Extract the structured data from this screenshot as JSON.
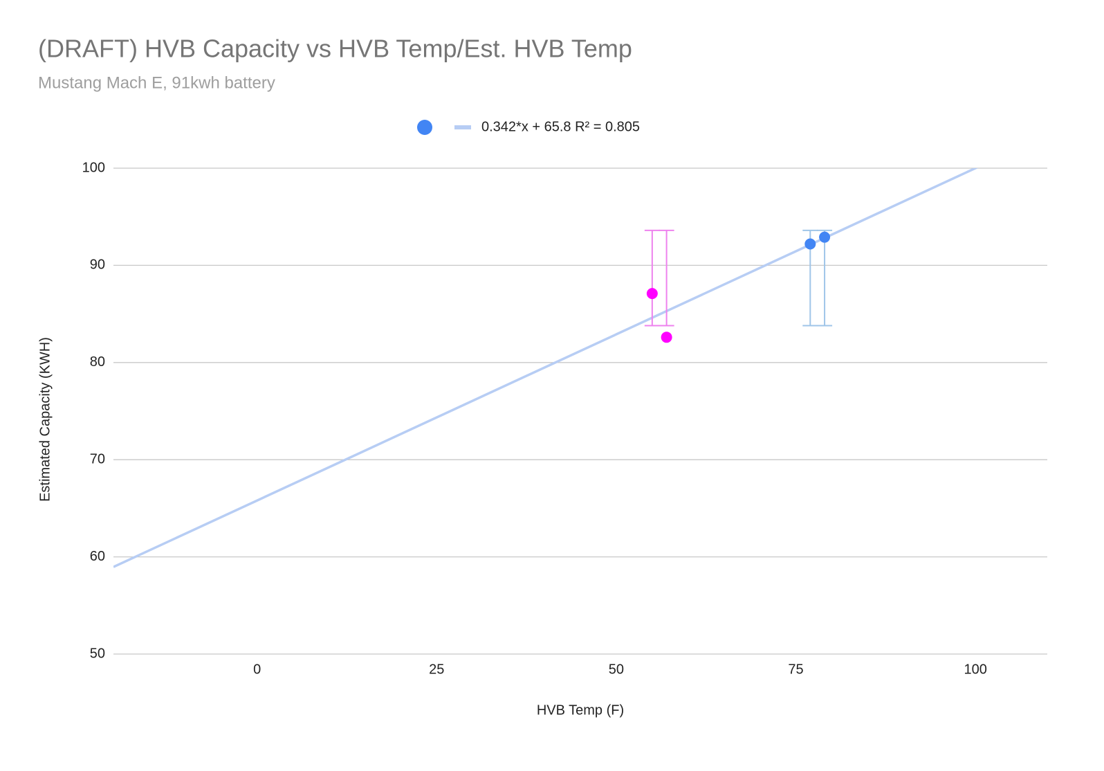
{
  "chart_data": {
    "type": "scatter",
    "title": "(DRAFT) HVB Capacity vs HVB Temp/Est. HVB Temp",
    "subtitle": "Mustang Mach E, 91kwh battery",
    "x_label": "HVB Temp (F)",
    "y_label": "Estimated Capacity (KWH)",
    "xlim": [
      -20,
      110
    ],
    "xticks": [
      0,
      25,
      50,
      75,
      100
    ],
    "ylim": [
      50,
      100
    ],
    "yticks": [
      50,
      60,
      70,
      80,
      90,
      100
    ],
    "grid": true,
    "series": [
      {
        "color": "#ff00ff",
        "error_color": "#ee82ee",
        "x": [
          55,
          57
        ],
        "values": [
          87.1,
          82.6
        ],
        "error_low": [
          83.8,
          83.8
        ],
        "error_high": [
          93.6,
          93.6
        ]
      },
      {
        "color": "#4285f4",
        "error_color": "#9fc5e8",
        "x": [
          77,
          79
        ],
        "values": [
          92.2,
          92.9
        ],
        "error_low": [
          83.8,
          83.8
        ],
        "error_high": [
          93.6,
          93.6
        ]
      }
    ],
    "trendline": {
      "slope": 0.342,
      "intercept": 65.8,
      "color": "#b7cdf4",
      "label": "0.342*x + 65.8 R² = 0.805"
    }
  }
}
